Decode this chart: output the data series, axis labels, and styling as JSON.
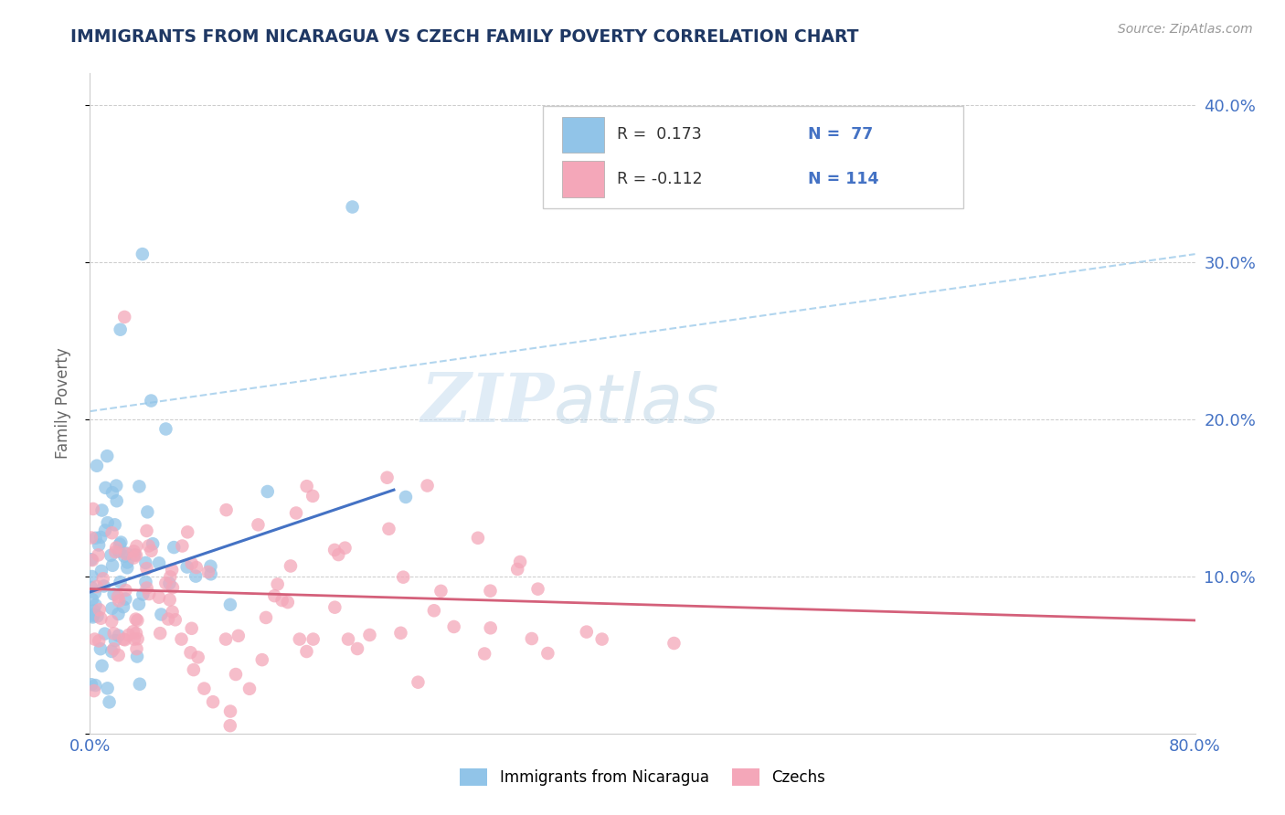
{
  "title": "IMMIGRANTS FROM NICARAGUA VS CZECH FAMILY POVERTY CORRELATION CHART",
  "source_text": "Source: ZipAtlas.com",
  "ylabel": "Family Poverty",
  "xlim": [
    0.0,
    0.8
  ],
  "ylim": [
    0.0,
    0.42
  ],
  "xticks": [
    0.0,
    0.1,
    0.2,
    0.3,
    0.4,
    0.5,
    0.6,
    0.7,
    0.8
  ],
  "yticks": [
    0.0,
    0.1,
    0.2,
    0.3,
    0.4
  ],
  "watermark_zip": "ZIP",
  "watermark_atlas": "atlas",
  "legend_r1": "R =  0.173",
  "legend_n1": "N =  77",
  "legend_r2": "R = -0.112",
  "legend_n2": "N = 114",
  "color_nicaragua": "#91c4e8",
  "color_czech": "#f4a7b9",
  "color_line_nicaragua": "#4472c4",
  "color_line_czech": "#d4607a",
  "color_dashed_line": "#91c4e8",
  "background_color": "#ffffff",
  "grid_color": "#cccccc",
  "R_nicaragua": 0.173,
  "N_nicaragua": 77,
  "R_czech": -0.112,
  "N_czech": 114,
  "title_color": "#1f3864",
  "tick_label_color": "#4472c4",
  "axis_label_color": "#666666",
  "nic_line_x0": 0.0,
  "nic_line_y0": 0.09,
  "nic_line_x1": 0.22,
  "nic_line_y1": 0.155,
  "cz_line_x0": 0.0,
  "cz_line_y0": 0.092,
  "cz_line_x1": 0.8,
  "cz_line_y1": 0.072,
  "dash_line_x0": 0.0,
  "dash_line_y0": 0.205,
  "dash_line_x1": 0.8,
  "dash_line_y1": 0.305
}
